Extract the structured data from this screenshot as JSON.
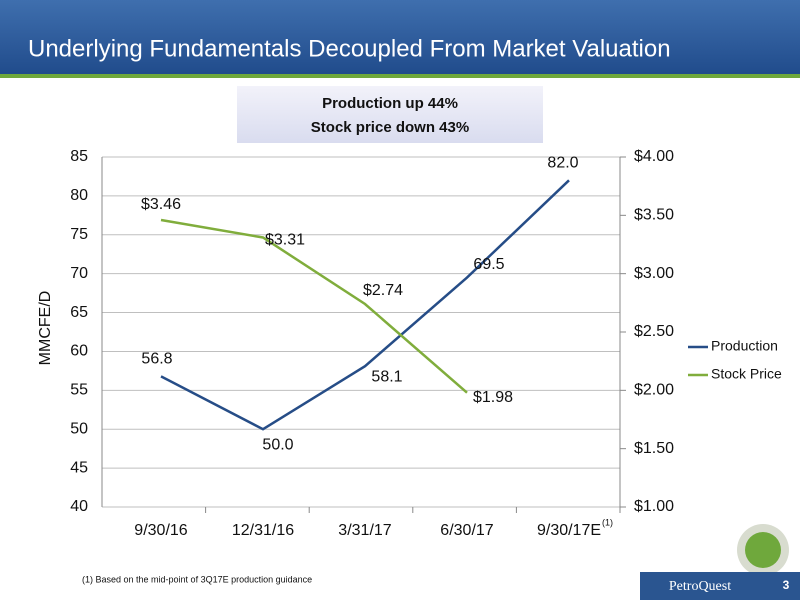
{
  "slide": {
    "title": "Underlying Fundamentals Decoupled From Market Valuation",
    "callout": [
      "Production up 44%",
      "Stock price down 43%"
    ],
    "footnote": "(1) Based on the mid-point of 3Q17E production guidance",
    "logo": "PetroQuest",
    "page": "3"
  },
  "chart_data": {
    "type": "line",
    "categories": [
      "9/30/16",
      "12/31/16",
      "3/31/17",
      "6/30/17",
      "9/30/17E"
    ],
    "category_note": "(1)",
    "ylabel": "MMCFE/D",
    "ylim": [
      40,
      85
    ],
    "yticks": [
      40,
      45,
      50,
      55,
      60,
      65,
      70,
      75,
      80,
      85
    ],
    "y2lim": [
      1,
      4
    ],
    "y2ticks": [
      {
        "value": 1,
        "label": "$1.00"
      },
      {
        "value": 1.5,
        "label": "$1.50"
      },
      {
        "value": 2,
        "label": "$2.00"
      },
      {
        "value": 2.5,
        "label": "$2.50"
      },
      {
        "value": 3,
        "label": "$3.00"
      },
      {
        "value": 3.5,
        "label": "$3.50"
      },
      {
        "value": 4,
        "label": "$4.00"
      }
    ],
    "grid": true,
    "legend": "right",
    "series": [
      {
        "name": "Production",
        "color": "#264d87",
        "values": [
          56.8,
          50.0,
          58.1,
          69.5,
          82.0
        ],
        "value_labels": [
          "56.8",
          "50.0",
          "58.1",
          "69.5",
          "82.0"
        ]
      },
      {
        "name": "Stock Price",
        "color": "#80ad3c",
        "axis": "y2",
        "values": [
          3.46,
          3.31,
          2.74,
          1.98,
          null
        ],
        "value_labels": [
          "$3.46",
          "$3.31",
          "$2.74",
          "$1.98",
          null
        ]
      }
    ]
  }
}
